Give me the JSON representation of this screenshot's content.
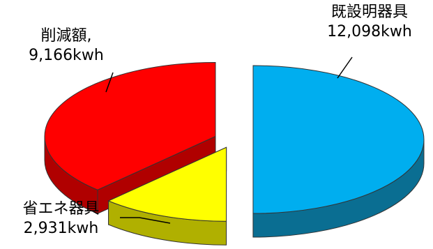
{
  "chart_data": {
    "type": "pie",
    "categories": [
      "既設明器具",
      "省エネ器具",
      "削減額"
    ],
    "values": [
      12098,
      2931,
      9166
    ],
    "labels": [
      {
        "category": "既設明器具",
        "value_text": "12,098kwh",
        "separator": ""
      },
      {
        "category": "省エネ器具",
        "value_text": "2,931kwh",
        "separator": ""
      },
      {
        "category": "削減額",
        "value_text": "9,166kwh",
        "separator": ","
      }
    ],
    "colors": {
      "既設明器具": {
        "top": "#00AEEF",
        "side": "#0A6E92"
      },
      "省エネ器具": {
        "top": "#FFFF00",
        "side": "#B0B000"
      },
      "削減額": {
        "top": "#FF0000",
        "side": "#B00000"
      }
    },
    "style": "3d-exploded",
    "legend": "none"
  }
}
